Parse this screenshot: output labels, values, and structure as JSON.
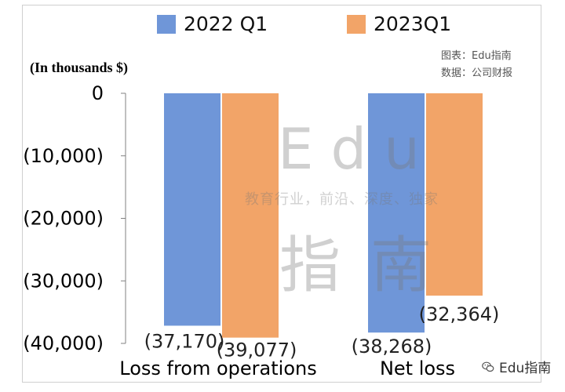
{
  "legend": {
    "items": [
      "2022 Q1",
      "2023Q1"
    ]
  },
  "unit_note": "(In thousands $)",
  "credits": {
    "chart": "图表：Edu指南",
    "data": "数据：公司财报"
  },
  "watermark": {
    "main": "Edu",
    "slogan": "教育行业，前沿、深度、独家",
    "sub": "指南"
  },
  "footer": {
    "brand": "Edu指南",
    "icon": "wechat-icon"
  },
  "colors": {
    "series1": "#6f96d8",
    "series2": "#f2a468",
    "axis": "#808080"
  },
  "chart_data": {
    "type": "bar",
    "categories": [
      "Loss from operations",
      "Net loss"
    ],
    "series": [
      {
        "name": "2022 Q1",
        "values": [
          -37170,
          -38268
        ],
        "labels": [
          "(37,170)",
          "(38,268)"
        ]
      },
      {
        "name": "2023Q1",
        "values": [
          -39077,
          -32364
        ],
        "labels": [
          "(39,077)",
          "(32,364)"
        ]
      }
    ],
    "yticks": [
      0,
      -10000,
      -20000,
      -30000,
      -40000
    ],
    "ytick_labels": [
      "0",
      "(10,000)",
      "(20,000)",
      "(30,000)",
      "(40,000)"
    ],
    "ylim": [
      -40000,
      0
    ],
    "ylabel": "(In thousands $)",
    "legend_position": "top",
    "grid": false
  }
}
